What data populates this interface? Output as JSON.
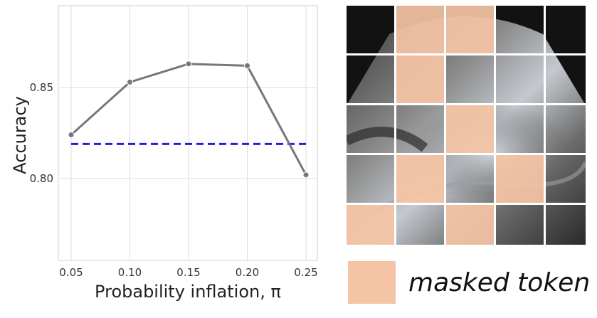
{
  "chart_data": {
    "type": "line",
    "title": "",
    "xlabel": "Probability inflation, π",
    "ylabel": "Accuracy",
    "x": [
      0.05,
      0.1,
      0.15,
      0.2,
      0.25
    ],
    "x_tick_labels": [
      "0.05",
      "0.10",
      "0.15",
      "0.20",
      "0.25"
    ],
    "y_ticks": [
      0.8,
      0.85
    ],
    "y_tick_labels": [
      "0.80",
      "0.85"
    ],
    "xlim": [
      0.05,
      0.25
    ],
    "ylim": [
      0.755,
      0.895
    ],
    "grid": true,
    "series": [
      {
        "values": [
          0.824,
          0.853,
          0.863,
          0.862,
          0.802
        ],
        "color": "#777777",
        "marker": "circle"
      }
    ],
    "reference_line": {
      "value": 0.819,
      "color": "#1f1fe0",
      "style": "dashed"
    }
  },
  "figure": {
    "masked_colour": "#f5c4a5",
    "masked_tiles": [
      [
        0,
        1
      ],
      [
        0,
        2
      ],
      [
        1,
        1
      ],
      [
        2,
        2
      ],
      [
        3,
        1
      ],
      [
        3,
        3
      ],
      [
        4,
        0
      ],
      [
        4,
        2
      ]
    ]
  },
  "legend": {
    "label": "masked token",
    "swatch_color": "#f5c4a5"
  }
}
